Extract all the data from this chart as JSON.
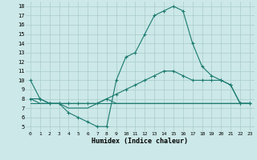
{
  "xlabel": "Humidex (Indice chaleur)",
  "xlim": [
    -0.5,
    23.5
  ],
  "ylim": [
    4.5,
    18.5
  ],
  "xticks": [
    0,
    1,
    2,
    3,
    4,
    5,
    6,
    7,
    8,
    9,
    10,
    11,
    12,
    13,
    14,
    15,
    16,
    17,
    18,
    19,
    20,
    21,
    22,
    23
  ],
  "yticks": [
    5,
    6,
    7,
    8,
    9,
    10,
    11,
    12,
    13,
    14,
    15,
    16,
    17,
    18
  ],
  "bg_color": "#cce8e8",
  "grid_color": "#aacccc",
  "line_color": "#1a7a6e",
  "lines": [
    {
      "x": [
        0,
        1,
        2,
        3,
        4,
        5,
        6,
        7,
        8,
        9,
        10,
        11,
        12,
        13,
        14,
        15,
        16,
        17,
        18,
        19,
        20,
        21,
        22,
        23
      ],
      "y": [
        10,
        8.0,
        7.5,
        7.5,
        6.5,
        6.0,
        5.5,
        5.0,
        5.0,
        10.0,
        12.5,
        13.0,
        15.0,
        17.0,
        17.5,
        18.0,
        17.5,
        14.0,
        11.5,
        10.5,
        10.0,
        9.5,
        7.5,
        7.5
      ],
      "marker": "+"
    },
    {
      "x": [
        0,
        1,
        2,
        3,
        4,
        5,
        6,
        7,
        8,
        9,
        10,
        11,
        12,
        13,
        14,
        15,
        16,
        17,
        18,
        19,
        20,
        21,
        22,
        23
      ],
      "y": [
        8.0,
        8.0,
        7.5,
        7.5,
        7.5,
        7.5,
        7.5,
        7.5,
        8.0,
        8.5,
        9.0,
        9.5,
        10.0,
        10.5,
        11.0,
        11.0,
        10.5,
        10.0,
        10.0,
        10.0,
        10.0,
        9.5,
        7.5,
        7.5
      ],
      "marker": "+"
    },
    {
      "x": [
        0,
        23
      ],
      "y": [
        7.5,
        7.5
      ],
      "marker": null
    },
    {
      "x": [
        0,
        1,
        2,
        3,
        4,
        5,
        6,
        7,
        8,
        9,
        10,
        11,
        12,
        13,
        14,
        15,
        16,
        17,
        18,
        19,
        20,
        21,
        22,
        23
      ],
      "y": [
        8.0,
        7.5,
        7.5,
        7.5,
        7.0,
        7.0,
        7.0,
        7.5,
        8.0,
        7.5,
        7.5,
        7.5,
        7.5,
        7.5,
        7.5,
        7.5,
        7.5,
        7.5,
        7.5,
        7.5,
        7.5,
        7.5,
        7.5,
        7.5
      ],
      "marker": null
    }
  ]
}
